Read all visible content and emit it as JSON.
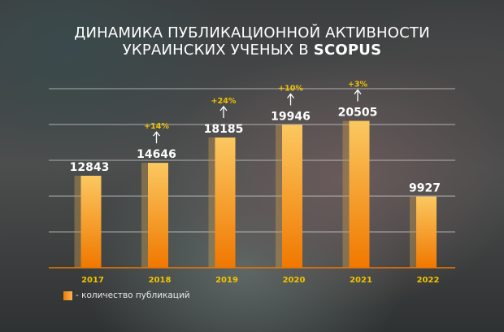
{
  "title_line1": "ДИНАМИКА ПУБЛИКАЦИОННОЙ АКТИВНОСТИ",
  "title_line2": "УКРАИНСКИХ УЧЕНЫХ В",
  "title_bold": "SCOPUS",
  "legend_label": "- количество публикаций",
  "colors": {
    "bar_top": "#fbc860",
    "bar_bottom": "#f07800",
    "pct": "#f2c200",
    "year": "#f2c200",
    "value": "#ffffff"
  },
  "chart_data": {
    "type": "bar",
    "categories": [
      "2017",
      "2018",
      "2019",
      "2020",
      "2021",
      "2022"
    ],
    "values": [
      12843,
      14646,
      18185,
      19946,
      20505,
      9927
    ],
    "value_labels": [
      "12843",
      "14646",
      "18185",
      "19946",
      "20505",
      "9927"
    ],
    "growth_labels": [
      "",
      "+14%",
      "+24%",
      "+10%",
      "+3%",
      ""
    ],
    "ylim": [
      0,
      25000
    ],
    "grid": true,
    "legend": "bottom-left",
    "series": [
      {
        "name": "- количество публикаций",
        "values": [
          12843,
          14646,
          18185,
          19946,
          20505,
          9927
        ]
      }
    ]
  }
}
